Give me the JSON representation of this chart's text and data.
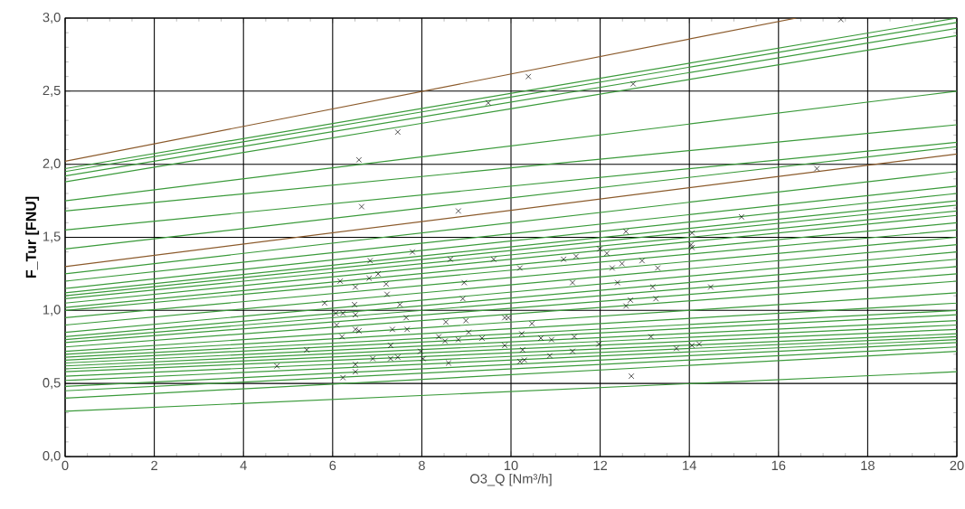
{
  "chart_data": {
    "type": "line",
    "xlabel": "O3_Q [Nm³/h]",
    "ylabel": "F_Tur [FNU]",
    "xlim": [
      0,
      20
    ],
    "ylim": [
      0,
      3
    ],
    "xticks": [
      0,
      2,
      4,
      6,
      8,
      10,
      12,
      14,
      16,
      18,
      20
    ],
    "yticks": [
      {
        "value": 0,
        "label": "0,0"
      },
      {
        "value": 0.5,
        "label": "0,5"
      },
      {
        "value": 1,
        "label": "1,0"
      },
      {
        "value": 1.5,
        "label": "1,5"
      },
      {
        "value": 2,
        "label": "2,0"
      },
      {
        "value": 2.5,
        "label": "2,5"
      },
      {
        "value": 3,
        "label": "3,0"
      }
    ],
    "grid": true,
    "line_style": "solid",
    "series": [
      {
        "color": "#8b5a2b",
        "x": [
          0,
          16.4
        ],
        "values": [
          2.02,
          3.0
        ]
      },
      {
        "color": "#3a9a3a",
        "x": [
          0,
          20
        ],
        "values": [
          1.97,
          3.0
        ]
      },
      {
        "color": "#3a9a3a",
        "x": [
          0,
          20
        ],
        "values": [
          1.95,
          2.97
        ]
      },
      {
        "color": "#3a9a3a",
        "x": [
          0,
          20
        ],
        "values": [
          1.92,
          2.93
        ]
      },
      {
        "color": "#3a9a3a",
        "x": [
          0,
          20
        ],
        "values": [
          1.88,
          2.88
        ]
      },
      {
        "color": "#3a9a3a",
        "x": [
          0,
          20
        ],
        "values": [
          1.75,
          2.5
        ]
      },
      {
        "color": "#3a9a3a",
        "x": [
          0,
          20
        ],
        "values": [
          1.68,
          2.27
        ]
      },
      {
        "color": "#3a9a3a",
        "x": [
          0,
          20
        ],
        "values": [
          1.55,
          2.15
        ]
      },
      {
        "color": "#3a9a3a",
        "x": [
          0,
          20
        ],
        "values": [
          1.42,
          2.12
        ]
      },
      {
        "color": "#8b5a2b",
        "x": [
          0,
          20
        ],
        "values": [
          1.3,
          2.07
        ]
      },
      {
        "color": "#3a9a3a",
        "x": [
          0,
          20
        ],
        "values": [
          1.25,
          1.95
        ]
      },
      {
        "color": "#3a9a3a",
        "x": [
          0,
          20
        ],
        "values": [
          1.2,
          1.85
        ]
      },
      {
        "color": "#3a9a3a",
        "x": [
          0,
          20
        ],
        "values": [
          1.15,
          1.8
        ]
      },
      {
        "color": "#3a9a3a",
        "x": [
          0,
          20
        ],
        "values": [
          1.12,
          1.75
        ]
      },
      {
        "color": "#3a9a3a",
        "x": [
          0,
          20
        ],
        "values": [
          1.1,
          1.72
        ]
      },
      {
        "color": "#3a9a3a",
        "x": [
          0,
          20
        ],
        "values": [
          1.08,
          1.68
        ]
      },
      {
        "color": "#3a9a3a",
        "x": [
          0,
          20
        ],
        "values": [
          1.05,
          1.65
        ]
      },
      {
        "color": "#3a9a3a",
        "x": [
          0,
          20
        ],
        "values": [
          1.02,
          1.6
        ]
      },
      {
        "color": "#3a9a3a",
        "x": [
          0,
          20
        ],
        "values": [
          1.0,
          1.55
        ]
      },
      {
        "color": "#3a9a3a",
        "x": [
          0,
          20
        ],
        "values": [
          0.95,
          1.5
        ]
      },
      {
        "color": "#3a9a3a",
        "x": [
          0,
          20
        ],
        "values": [
          0.9,
          1.45
        ]
      },
      {
        "color": "#3a9a3a",
        "x": [
          0,
          20
        ],
        "values": [
          0.85,
          1.4
        ]
      },
      {
        "color": "#3a9a3a",
        "x": [
          0,
          20
        ],
        "values": [
          0.82,
          1.35
        ]
      },
      {
        "color": "#3a9a3a",
        "x": [
          0,
          20
        ],
        "values": [
          0.8,
          1.3
        ]
      },
      {
        "color": "#3a9a3a",
        "x": [
          0,
          20
        ],
        "values": [
          0.78,
          1.25
        ]
      },
      {
        "color": "#3a9a3a",
        "x": [
          0,
          20
        ],
        "values": [
          0.75,
          1.2
        ]
      },
      {
        "color": "#3a9a3a",
        "x": [
          0,
          20
        ],
        "values": [
          0.72,
          1.12
        ]
      },
      {
        "color": "#3a9a3a",
        "x": [
          0,
          20
        ],
        "values": [
          0.7,
          1.05
        ]
      },
      {
        "color": "#3a9a3a",
        "x": [
          0,
          20
        ],
        "values": [
          0.68,
          1.0
        ]
      },
      {
        "color": "#3a9a3a",
        "x": [
          0,
          20
        ],
        "values": [
          0.66,
          0.97
        ]
      },
      {
        "color": "#3a9a3a",
        "x": [
          0,
          20
        ],
        "values": [
          0.64,
          0.93
        ]
      },
      {
        "color": "#3a9a3a",
        "x": [
          0,
          20
        ],
        "values": [
          0.62,
          0.9
        ]
      },
      {
        "color": "#3a9a3a",
        "x": [
          0,
          20
        ],
        "values": [
          0.6,
          0.87
        ]
      },
      {
        "color": "#3a9a3a",
        "x": [
          0,
          20
        ],
        "values": [
          0.58,
          0.84
        ]
      },
      {
        "color": "#3a9a3a",
        "x": [
          0,
          20
        ],
        "values": [
          0.55,
          0.82
        ]
      },
      {
        "color": "#3a9a3a",
        "x": [
          0,
          20
        ],
        "values": [
          0.52,
          0.8
        ]
      },
      {
        "color": "#3a9a3a",
        "x": [
          0,
          20
        ],
        "values": [
          0.48,
          0.78
        ]
      },
      {
        "color": "#3a9a3a",
        "x": [
          0,
          20
        ],
        "values": [
          0.45,
          0.75
        ]
      },
      {
        "color": "#3a9a3a",
        "x": [
          0,
          20
        ],
        "values": [
          0.4,
          0.72
        ]
      },
      {
        "color": "#3a9a3a",
        "x": [
          0,
          20
        ],
        "values": [
          0.31,
          0.58
        ]
      },
      {
        "type": "scatter",
        "color": "#000000",
        "marker": "cross",
        "x": [
          7.46,
          9.49,
          10.39,
          12.74,
          17.4,
          6.59,
          6.65,
          8.82,
          16.86,
          15.17,
          14.06,
          14.04,
          4.75,
          5.42,
          5.82,
          6.17,
          6.51,
          6.84,
          7.02,
          6.82,
          7.2,
          7.22,
          7.51,
          7.65,
          7.34,
          7.67,
          7.79,
          8.64,
          8.95,
          8.92,
          9.61,
          6.07,
          6.23,
          6.49,
          6.51,
          6.09,
          6.21,
          6.51,
          6.59,
          7.3,
          6.9,
          7.3,
          7.46,
          6.51,
          6.51,
          6.23,
          7.97,
          8.03,
          8.54,
          8.99,
          8.38,
          8.52,
          8.82,
          9.05,
          9.35,
          8.6,
          9.86,
          9.86,
          10.2,
          11.18,
          11.46,
          11.99,
          12.15,
          12.27,
          12.49,
          12.94,
          13.29,
          14.06,
          11.38,
          12.39,
          13.18,
          14.48,
          12.68,
          12.58,
          13.25,
          9.94,
          10.47,
          10.24,
          10.67,
          10.91,
          11.42,
          10.26,
          10.87,
          11.38,
          11.97,
          13.14,
          13.71,
          14.06,
          14.22,
          10.2,
          10.3,
          12.7,
          12.58
        ],
        "values": [
          2.22,
          2.42,
          2.6,
          2.55,
          2.99,
          2.03,
          1.71,
          1.68,
          1.97,
          1.64,
          1.53,
          1.45,
          0.62,
          0.73,
          1.05,
          1.2,
          1.16,
          1.34,
          1.25,
          1.22,
          1.18,
          1.11,
          1.04,
          0.95,
          0.87,
          0.87,
          1.4,
          1.35,
          1.19,
          1.08,
          1.35,
          0.98,
          0.98,
          1.04,
          0.97,
          0.9,
          0.82,
          0.87,
          0.86,
          0.76,
          0.67,
          0.67,
          0.68,
          0.63,
          0.58,
          0.54,
          0.72,
          0.67,
          0.92,
          0.93,
          0.82,
          0.79,
          0.8,
          0.85,
          0.81,
          0.64,
          0.76,
          0.95,
          1.29,
          1.35,
          1.37,
          1.42,
          1.39,
          1.29,
          1.32,
          1.34,
          1.29,
          1.43,
          1.19,
          1.19,
          1.16,
          1.16,
          1.07,
          1.03,
          1.08,
          0.95,
          0.91,
          0.84,
          0.81,
          0.8,
          0.82,
          0.73,
          0.69,
          0.72,
          0.77,
          0.82,
          0.74,
          0.76,
          0.77,
          0.65,
          0.66,
          0.55,
          1.54
        ]
      }
    ]
  }
}
